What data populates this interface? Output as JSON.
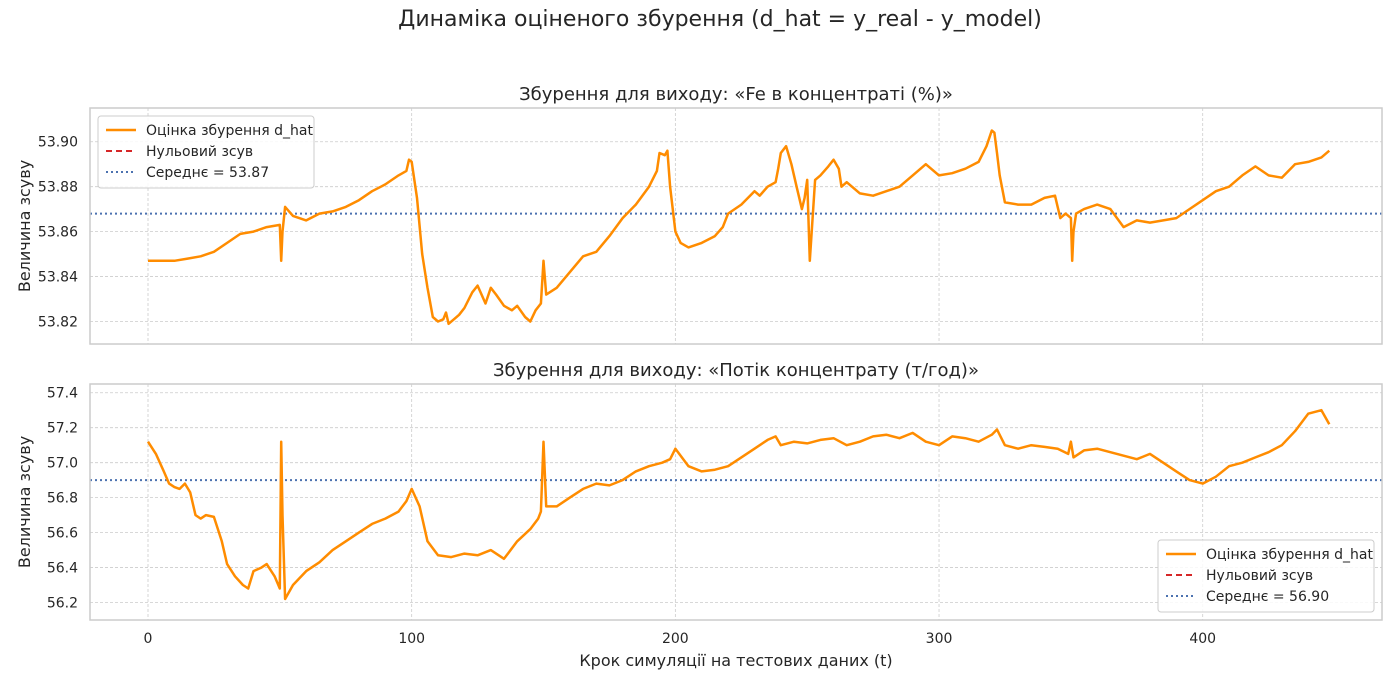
{
  "figure": {
    "title": "Динаміка оціненого збурення (d_hat = y_real - y_model)",
    "xlabel": "Крок симуляції на тестових даних (t)"
  },
  "colors": {
    "series": "#ff8c00",
    "zero": "#d62728",
    "mean": "#4c72b0"
  },
  "chart_data": [
    {
      "type": "line",
      "title": "Збурення для виходу: «Fe в концентраті (%)»",
      "ylabel": "Величина зсуву",
      "xlim": [
        -22,
        468
      ],
      "ylim": [
        53.81,
        53.915
      ],
      "xticks": [
        0,
        100,
        200,
        300,
        400
      ],
      "yticks": [
        53.82,
        53.84,
        53.86,
        53.88,
        53.9
      ],
      "ytick_labels": [
        "53.82",
        "53.84",
        "53.86",
        "53.88",
        "53.90"
      ],
      "mean": 53.868,
      "legend": {
        "placement": "upper-left",
        "entries": [
          "Оцінка збурення d_hat",
          "Нульовий зсув",
          "Середнє = 53.87"
        ]
      },
      "series": [
        {
          "name": "Оцінка збурення d_hat",
          "x": [
            0,
            5,
            10,
            15,
            20,
            25,
            30,
            35,
            40,
            45,
            50,
            50.5,
            51,
            52,
            55,
            60,
            65,
            70,
            75,
            80,
            85,
            90,
            95,
            98,
            99,
            100,
            102,
            104,
            106,
            108,
            110,
            112,
            113,
            114,
            116,
            118,
            120,
            123,
            125,
            128,
            130,
            132,
            135,
            138,
            140,
            143,
            145,
            147,
            149,
            150,
            151,
            155,
            160,
            165,
            170,
            175,
            180,
            185,
            190,
            193,
            194,
            196,
            197,
            198,
            200,
            202,
            205,
            210,
            215,
            218,
            220,
            225,
            230,
            232,
            235,
            238,
            239,
            240,
            242,
            244,
            246,
            248,
            249,
            250,
            251,
            253,
            255,
            258,
            260,
            262,
            263,
            265,
            270,
            275,
            280,
            285,
            290,
            295,
            300,
            305,
            310,
            315,
            318,
            320,
            321,
            322,
            323,
            325,
            330,
            335,
            340,
            344,
            346,
            348,
            350,
            350.5,
            351,
            352,
            355,
            360,
            365,
            370,
            375,
            380,
            385,
            390,
            395,
            400,
            405,
            410,
            415,
            420,
            425,
            430,
            435,
            440,
            445,
            448
          ],
          "values": [
            53.847,
            53.847,
            53.847,
            53.848,
            53.849,
            53.851,
            53.855,
            53.859,
            53.86,
            53.862,
            53.863,
            53.847,
            53.86,
            53.871,
            53.867,
            53.865,
            53.868,
            53.869,
            53.871,
            53.874,
            53.878,
            53.881,
            53.885,
            53.887,
            53.892,
            53.891,
            53.875,
            53.85,
            53.835,
            53.822,
            53.82,
            53.821,
            53.824,
            53.819,
            53.821,
            53.823,
            53.826,
            53.833,
            53.836,
            53.828,
            53.835,
            53.832,
            53.827,
            53.825,
            53.827,
            53.822,
            53.82,
            53.825,
            53.828,
            53.847,
            53.832,
            53.835,
            53.842,
            53.849,
            53.851,
            53.858,
            53.866,
            53.872,
            53.88,
            53.887,
            53.895,
            53.894,
            53.896,
            53.88,
            53.86,
            53.855,
            53.853,
            53.855,
            53.858,
            53.862,
            53.868,
            53.872,
            53.878,
            53.876,
            53.88,
            53.882,
            53.888,
            53.895,
            53.898,
            53.89,
            53.88,
            53.87,
            53.875,
            53.883,
            53.847,
            53.883,
            53.885,
            53.889,
            53.892,
            53.888,
            53.88,
            53.882,
            53.877,
            53.876,
            53.878,
            53.88,
            53.885,
            53.89,
            53.885,
            53.886,
            53.888,
            53.891,
            53.898,
            53.905,
            53.904,
            53.895,
            53.885,
            53.873,
            53.872,
            53.872,
            53.875,
            53.876,
            53.866,
            53.868,
            53.866,
            53.847,
            53.86,
            53.868,
            53.87,
            53.872,
            53.87,
            53.862,
            53.865,
            53.864,
            53.865,
            53.866,
            53.87,
            53.874,
            53.878,
            53.88,
            53.885,
            53.889,
            53.885,
            53.884,
            53.89,
            53.891,
            53.893,
            53.896
          ]
        }
      ]
    },
    {
      "type": "line",
      "title": "Збурення для виходу: «Потік концентрату (т/год)»",
      "ylabel": "Величина зсуву",
      "xlim": [
        -22,
        468
      ],
      "ylim": [
        56.1,
        57.45
      ],
      "xticks": [
        0,
        100,
        200,
        300,
        400
      ],
      "xtick_labels": [
        "0",
        "100",
        "200",
        "300",
        "400"
      ],
      "yticks": [
        56.2,
        56.4,
        56.6,
        56.8,
        57.0,
        57.2,
        57.4
      ],
      "ytick_labels": [
        "56.2",
        "56.4",
        "56.6",
        "56.8",
        "57.0",
        "57.2",
        "57.4"
      ],
      "mean": 56.9,
      "legend": {
        "placement": "lower-right",
        "entries": [
          "Оцінка збурення d_hat",
          "Нульовий зсув",
          "Середнє = 56.90"
        ]
      },
      "series": [
        {
          "name": "Оцінка збурення d_hat",
          "x": [
            0,
            3,
            6,
            8,
            10,
            12,
            14,
            16,
            18,
            20,
            22,
            25,
            28,
            30,
            33,
            36,
            38,
            40,
            43,
            45,
            48,
            50,
            50.5,
            51,
            52,
            55,
            60,
            65,
            70,
            75,
            80,
            85,
            90,
            95,
            98,
            100,
            103,
            106,
            110,
            115,
            120,
            125,
            130,
            135,
            140,
            145,
            148,
            149,
            150,
            151,
            155,
            160,
            165,
            170,
            175,
            180,
            185,
            190,
            195,
            198,
            200,
            205,
            210,
            215,
            220,
            225,
            230,
            235,
            238,
            240,
            245,
            250,
            255,
            260,
            265,
            270,
            275,
            280,
            285,
            290,
            295,
            300,
            305,
            310,
            315,
            320,
            322,
            325,
            330,
            335,
            340,
            345,
            349,
            350,
            351,
            355,
            360,
            365,
            370,
            375,
            380,
            385,
            390,
            395,
            400,
            405,
            410,
            415,
            420,
            425,
            430,
            435,
            440,
            445,
            448
          ],
          "values": [
            57.12,
            57.05,
            56.95,
            56.88,
            56.86,
            56.85,
            56.88,
            56.83,
            56.7,
            56.68,
            56.7,
            56.69,
            56.55,
            56.42,
            56.35,
            56.3,
            56.28,
            56.38,
            56.4,
            56.42,
            56.35,
            56.28,
            57.12,
            56.7,
            56.22,
            56.3,
            56.38,
            56.43,
            56.5,
            56.55,
            56.6,
            56.65,
            56.68,
            56.72,
            56.78,
            56.85,
            56.75,
            56.55,
            56.47,
            56.46,
            56.48,
            56.47,
            56.5,
            56.45,
            56.55,
            56.62,
            56.68,
            56.72,
            57.12,
            56.75,
            56.75,
            56.8,
            56.85,
            56.88,
            56.87,
            56.9,
            56.95,
            56.98,
            57.0,
            57.02,
            57.08,
            56.98,
            56.95,
            56.96,
            56.98,
            57.03,
            57.08,
            57.13,
            57.15,
            57.1,
            57.12,
            57.11,
            57.13,
            57.14,
            57.1,
            57.12,
            57.15,
            57.16,
            57.14,
            57.17,
            57.12,
            57.1,
            57.15,
            57.14,
            57.12,
            57.16,
            57.19,
            57.1,
            57.08,
            57.1,
            57.09,
            57.08,
            57.05,
            57.12,
            57.03,
            57.07,
            57.08,
            57.06,
            57.04,
            57.02,
            57.05,
            57.0,
            56.95,
            56.9,
            56.88,
            56.92,
            56.98,
            57.0,
            57.03,
            57.06,
            57.1,
            57.18,
            57.28,
            57.3,
            57.22
          ]
        }
      ]
    }
  ]
}
